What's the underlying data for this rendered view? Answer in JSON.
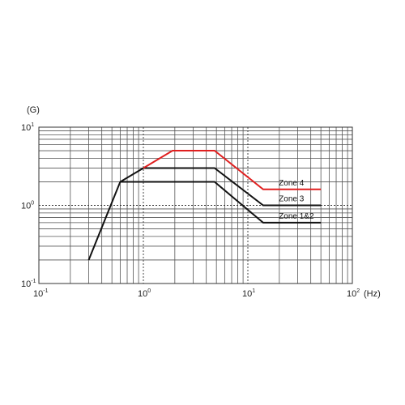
{
  "chart_data": {
    "type": "line",
    "x_scale": "log",
    "y_scale": "log",
    "xlim": [
      0.1,
      100
    ],
    "ylim": [
      0.1,
      10
    ],
    "ylabel": "(G)",
    "xlabel": "(Hz)",
    "grid": true,
    "x_ticks": [
      {
        "value": 0.1,
        "base": "10",
        "exp": "-1"
      },
      {
        "value": 1,
        "base": "10",
        "exp": "0"
      },
      {
        "value": 10,
        "base": "10",
        "exp": "1"
      },
      {
        "value": 100,
        "base": "10",
        "exp": "2"
      }
    ],
    "y_ticks": [
      {
        "value": 0.1,
        "base": "10",
        "exp": "-1"
      },
      {
        "value": 1,
        "base": "10",
        "exp": "0"
      },
      {
        "value": 10,
        "base": "10",
        "exp": "1"
      }
    ],
    "series": [
      {
        "name": "Zone 4",
        "color": "#e02020",
        "x": [
          1.0,
          1.9,
          4.8,
          14,
          50
        ],
        "y": [
          3.0,
          5.0,
          5.0,
          1.6,
          1.6
        ]
      },
      {
        "name": "Zone 3",
        "color": "#111111",
        "x": [
          0.3,
          0.6,
          1.0,
          4.8,
          14,
          50
        ],
        "y": [
          0.2,
          2.0,
          3.0,
          3.0,
          1.0,
          1.0
        ]
      },
      {
        "name": "Zone 1&2",
        "color": "#111111",
        "x": [
          0.6,
          4.8,
          14,
          50
        ],
        "y": [
          2.0,
          2.0,
          0.6,
          0.6
        ]
      }
    ]
  }
}
